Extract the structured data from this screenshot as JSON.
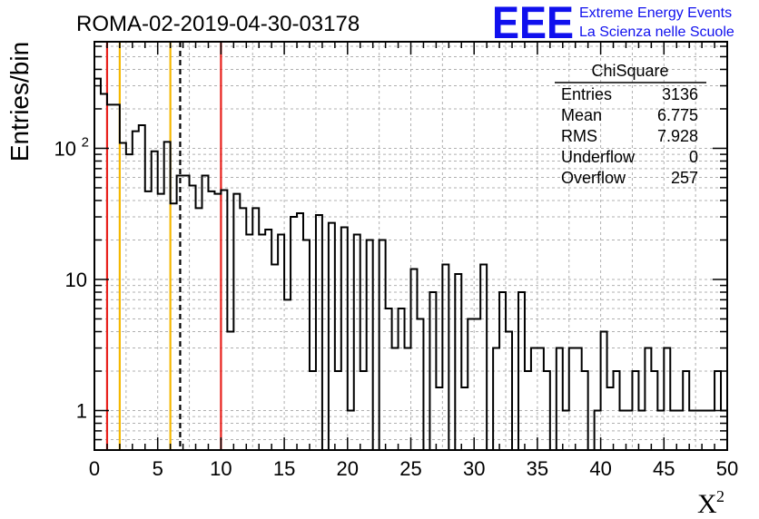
{
  "title": "ROMA-02-2019-04-30-03178",
  "logo": {
    "mark": "EEE",
    "line1": "Extreme Energy Events",
    "line2": "La Scienza nelle Scuole",
    "color": "#1010ee"
  },
  "chart_data": {
    "type": "bar",
    "style": "step-histogram",
    "ylabel": "Entries/bin",
    "xlabel": "X",
    "xlabel_sup": "2",
    "x_range": [
      0,
      50
    ],
    "y_range": [
      0.5,
      650
    ],
    "y_scale": "log",
    "grid": true,
    "bin_width": 0.5,
    "x_ticks": [
      "0",
      "5",
      "10",
      "15",
      "20",
      "25",
      "30",
      "35",
      "40",
      "45",
      "50"
    ],
    "y_ticks": [
      {
        "value": 1,
        "label": "1"
      },
      {
        "value": 10,
        "label": "10"
      },
      {
        "value": 100,
        "label": "10",
        "sup": "2"
      }
    ],
    "values": [
      340,
      260,
      215,
      215,
      110,
      90,
      135,
      150,
      47,
      95,
      45,
      112,
      38,
      62,
      62,
      52,
      35,
      62,
      47,
      45,
      48,
      4,
      45,
      35,
      22,
      35,
      22,
      24,
      13,
      22,
      7,
      30,
      32,
      20,
      2,
      31,
      0.4,
      27,
      2,
      25,
      1,
      22,
      2,
      20,
      0.4,
      20,
      6,
      3,
      6,
      3,
      12,
      5,
      0.4,
      8,
      1.5,
      13,
      0.4,
      11,
      1.5,
      5,
      5,
      13,
      0.4,
      3,
      8,
      4,
      0.4,
      8,
      2,
      3,
      3,
      2,
      0.4,
      3,
      1,
      3,
      3,
      2,
      0.4,
      1,
      4,
      1.5,
      2,
      1,
      1,
      2,
      1,
      3,
      2,
      1,
      3,
      1,
      1,
      2,
      1,
      1,
      1,
      1,
      2,
      1
    ],
    "vertical_lines": [
      {
        "x": 1,
        "color": "#e8211c",
        "style": "solid"
      },
      {
        "x": 2,
        "color": "#f5b800",
        "style": "solid"
      },
      {
        "x": 6,
        "color": "#f5b800",
        "style": "solid"
      },
      {
        "x": 6.775,
        "color": "#000000",
        "style": "dashed"
      },
      {
        "x": 10,
        "color": "#e8211c",
        "style": "solid"
      }
    ]
  },
  "stats_box": {
    "name": "ChiSquare",
    "rows": [
      {
        "label": "Entries",
        "value": "3136"
      },
      {
        "label": "Mean",
        "value": "6.775"
      },
      {
        "label": "RMS",
        "value": "7.928"
      },
      {
        "label": "Underflow",
        "value": "0"
      },
      {
        "label": "Overflow",
        "value": "257"
      }
    ]
  }
}
